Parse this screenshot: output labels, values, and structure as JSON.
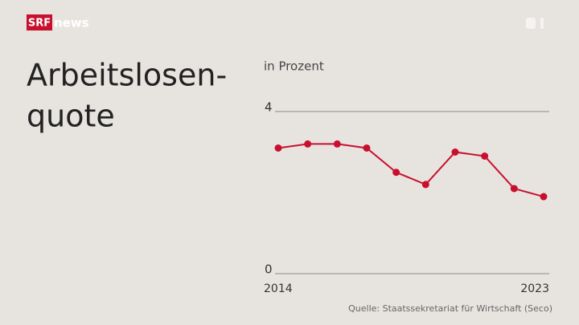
{
  "brand": {
    "logo": "SRF",
    "channel": "news"
  },
  "chart_data": {
    "type": "line",
    "title": [
      "Arbeitslosen-",
      "quote"
    ],
    "subtitle": "in Prozent",
    "source": "Quelle: Staatssekretariat für Wirtschaft (Seco)",
    "x": [
      2014,
      2015,
      2016,
      2017,
      2018,
      2019,
      2020,
      2021,
      2022,
      2023
    ],
    "xlim": [
      2014,
      2023
    ],
    "xticks": [
      2014,
      2023
    ],
    "ylim": [
      0,
      4
    ],
    "yticks": [
      0,
      4
    ],
    "grid": true,
    "series": [
      {
        "color": "#c8102e",
        "values": [
          3.1,
          3.2,
          3.2,
          3.1,
          2.5,
          2.2,
          3.0,
          2.9,
          2.1,
          1.9
        ]
      }
    ]
  }
}
